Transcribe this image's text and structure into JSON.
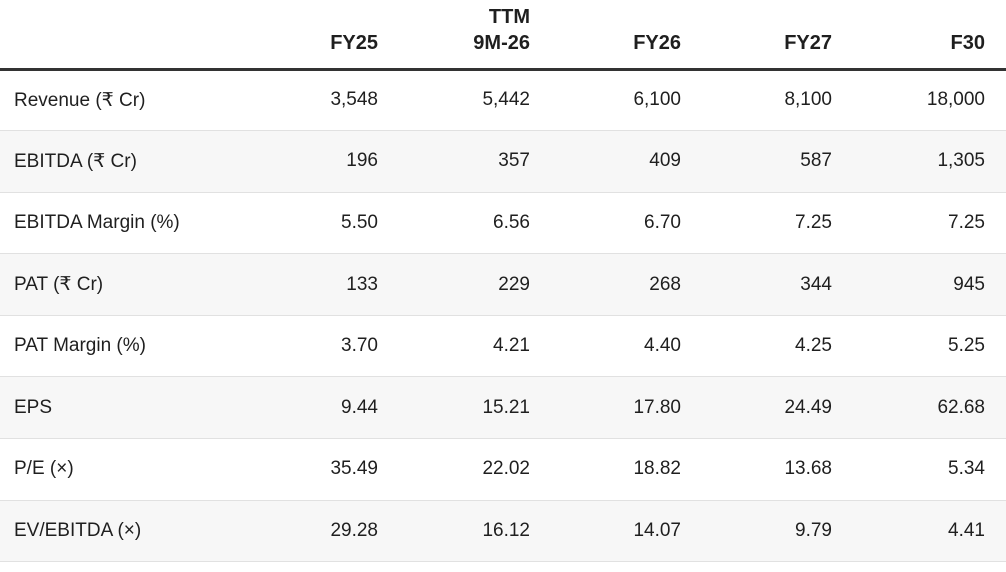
{
  "colors": {
    "text": "#1f1f1f",
    "header_rule": "#333333",
    "row_divider": "#e1e1e1",
    "zebra_row": "#f7f7f7",
    "background": "#ffffff"
  },
  "table": {
    "columns": [
      {
        "top": "",
        "label": ""
      },
      {
        "top": "",
        "label": "FY25"
      },
      {
        "top": "TTM",
        "label": "9M-26"
      },
      {
        "top": "",
        "label": "FY26"
      },
      {
        "top": "",
        "label": "FY27"
      },
      {
        "top": "",
        "label": "F30"
      }
    ],
    "rows": [
      {
        "label": "Revenue (₹ Cr)",
        "values": [
          "3,548",
          "5,442",
          "6,100",
          "8,100",
          "18,000"
        ]
      },
      {
        "label": "EBITDA (₹ Cr)",
        "values": [
          "196",
          "357",
          "409",
          "587",
          "1,305"
        ]
      },
      {
        "label": "EBITDA Margin (%)",
        "values": [
          "5.50",
          "6.56",
          "6.70",
          "7.25",
          "7.25"
        ]
      },
      {
        "label": "PAT (₹ Cr)",
        "values": [
          "133",
          "229",
          "268",
          "344",
          "945"
        ]
      },
      {
        "label": "PAT Margin (%)",
        "values": [
          "3.70",
          "4.21",
          "4.40",
          "4.25",
          "5.25"
        ]
      },
      {
        "label": "EPS",
        "values": [
          "9.44",
          "15.21",
          "17.80",
          "24.49",
          "62.68"
        ]
      },
      {
        "label": "P/E (×)",
        "values": [
          "35.49",
          "22.02",
          "18.82",
          "13.68",
          "5.34"
        ]
      },
      {
        "label": "EV/EBITDA (×)",
        "values": [
          "29.28",
          "16.12",
          "14.07",
          "9.79",
          "4.41"
        ]
      }
    ]
  },
  "chart_data": {
    "type": "table",
    "title": "Financial projections table",
    "categories": [
      "FY25",
      "TTM 9M-26",
      "FY26",
      "FY27",
      "F30"
    ],
    "series": [
      {
        "name": "Revenue (₹ Cr)",
        "values": [
          3548,
          5442,
          6100,
          8100,
          18000
        ]
      },
      {
        "name": "EBITDA (₹ Cr)",
        "values": [
          196,
          357,
          409,
          587,
          1305
        ]
      },
      {
        "name": "EBITDA Margin (%)",
        "values": [
          5.5,
          6.56,
          6.7,
          7.25,
          7.25
        ]
      },
      {
        "name": "PAT (₹ Cr)",
        "values": [
          133,
          229,
          268,
          344,
          945
        ]
      },
      {
        "name": "PAT Margin (%)",
        "values": [
          3.7,
          4.21,
          4.4,
          4.25,
          5.25
        ]
      },
      {
        "name": "EPS",
        "values": [
          9.44,
          15.21,
          17.8,
          24.49,
          62.68
        ]
      },
      {
        "name": "P/E (×)",
        "values": [
          35.49,
          22.02,
          18.82,
          13.68,
          5.34
        ]
      },
      {
        "name": "EV/EBITDA (×)",
        "values": [
          29.28,
          16.12,
          14.07,
          9.79,
          4.41
        ]
      }
    ],
    "layout": {
      "zebra_striping": true,
      "header_rule": "thick dark line under header",
      "grid": "horizontal row dividers only"
    }
  }
}
